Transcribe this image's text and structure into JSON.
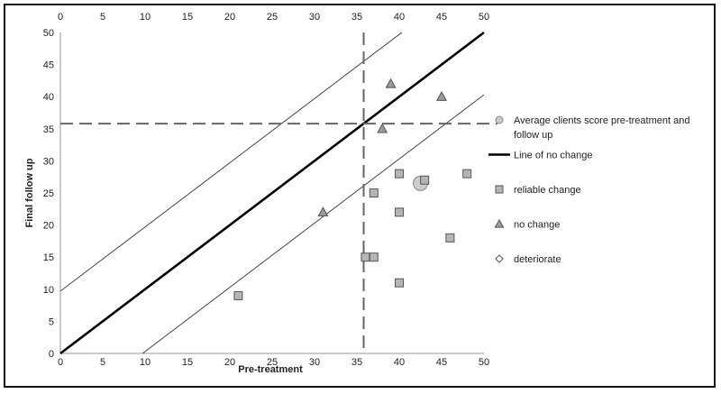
{
  "chart_data": {
    "type": "scatter",
    "xlabel": "Pre-treatment",
    "ylabel": "Final follow up",
    "xlim": [
      0,
      50
    ],
    "ylim": [
      0,
      50
    ],
    "x_ticks": [
      0,
      5,
      10,
      15,
      20,
      25,
      30,
      35,
      40,
      45,
      50
    ],
    "y_ticks": [
      0,
      5,
      10,
      15,
      20,
      25,
      30,
      35,
      40,
      45,
      50
    ],
    "grid": false,
    "secondary_x_axis_on_top": true,
    "legend_position": "right",
    "series": [
      {
        "name": "Average clients score pre-treatment and follow up",
        "marker": "circle",
        "points": [
          [
            42.5,
            26.5
          ]
        ]
      },
      {
        "name": "Line of no change",
        "marker": "line",
        "points": [
          [
            0,
            0
          ],
          [
            50,
            50
          ]
        ]
      },
      {
        "name": "reliable change",
        "marker": "square",
        "points": [
          [
            21,
            9
          ],
          [
            36,
            15
          ],
          [
            37,
            15
          ],
          [
            37,
            25
          ],
          [
            40,
            28
          ],
          [
            40,
            22
          ],
          [
            40,
            11
          ],
          [
            43,
            27
          ],
          [
            46,
            18
          ],
          [
            48,
            28
          ]
        ]
      },
      {
        "name": "no change",
        "marker": "triangle",
        "points": [
          [
            31,
            22
          ],
          [
            38,
            35
          ],
          [
            39,
            42
          ],
          [
            45,
            40
          ]
        ]
      },
      {
        "name": "deteriorate",
        "marker": "diamond",
        "points": []
      }
    ],
    "reference_lines": {
      "upper_band": [
        [
          0,
          9.7
        ],
        [
          40.3,
          50
        ]
      ],
      "lower_band": [
        [
          9.7,
          0
        ],
        [
          50,
          40.3
        ]
      ],
      "vertical_dashed_x": 35.8,
      "horizontal_dashed_y": 35.8
    },
    "colors": {
      "marker_fill": "#b5b5b5",
      "marker_stroke": "#555555",
      "average_fill": "#cccccc",
      "dashed_line": "#666666",
      "no_change_line": "#000000"
    }
  }
}
